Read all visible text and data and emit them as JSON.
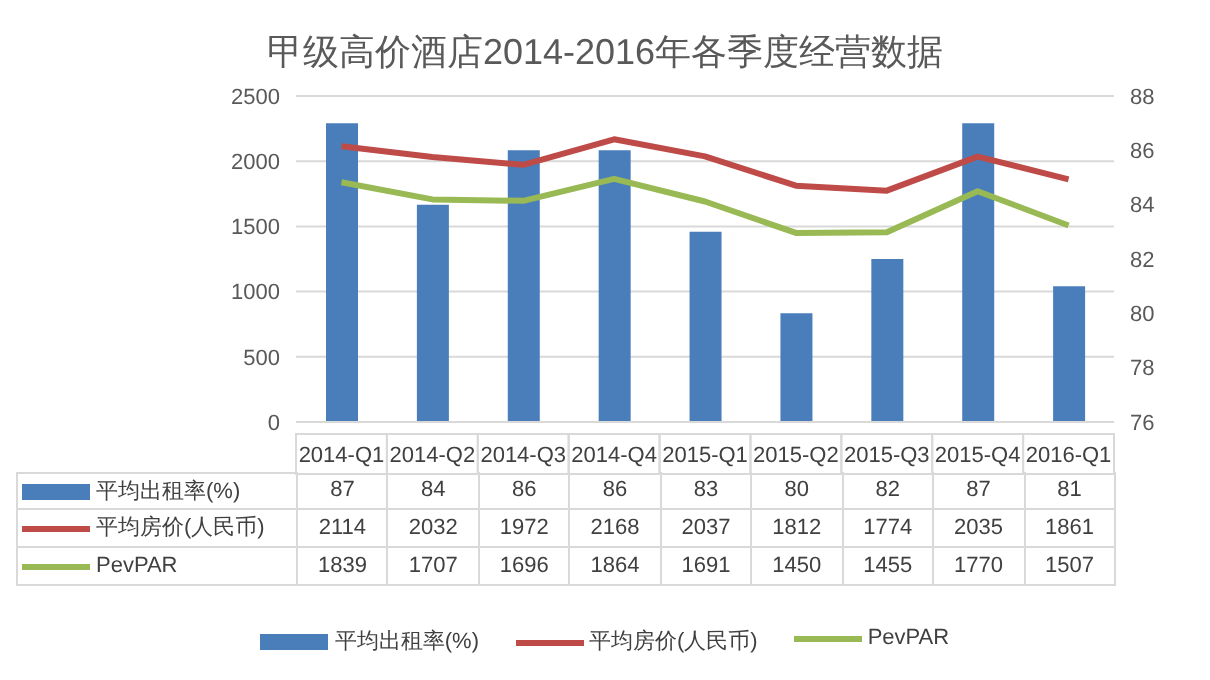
{
  "chart_data": {
    "type": "bar",
    "title": "甲级高价酒店2014-2016年各季度经营数据",
    "categories": [
      "2014-Q1",
      "2014-Q2",
      "2014-Q3",
      "2014-Q4",
      "2015-Q1",
      "2015-Q2",
      "2015-Q3",
      "2015-Q4",
      "2016-Q1"
    ],
    "series": [
      {
        "name": "平均出租率(%)",
        "axis": "y2",
        "color": "#4a7ebb",
        "values": [
          87,
          84,
          86,
          86,
          83,
          80,
          82,
          87,
          81
        ]
      },
      {
        "name": "平均房价(人民币)",
        "type": "line",
        "color": "#be4b48",
        "values": [
          2114,
          2032,
          1972,
          2168,
          2037,
          1812,
          1774,
          2035,
          1861
        ]
      },
      {
        "name": "PevPAR",
        "type": "line",
        "color": "#98b954",
        "values": [
          1839,
          1707,
          1696,
          1864,
          1691,
          1450,
          1455,
          1770,
          1507
        ]
      }
    ],
    "ylim": [
      0,
      2500
    ],
    "yticks": [
      0,
      500,
      1000,
      1500,
      2000,
      2500
    ],
    "y2lim": [
      76,
      88
    ],
    "y2ticks": [
      76,
      78,
      80,
      82,
      84,
      86,
      88
    ],
    "grid": "y",
    "legend": "bottom",
    "marker": "none",
    "data_labels": true
  }
}
